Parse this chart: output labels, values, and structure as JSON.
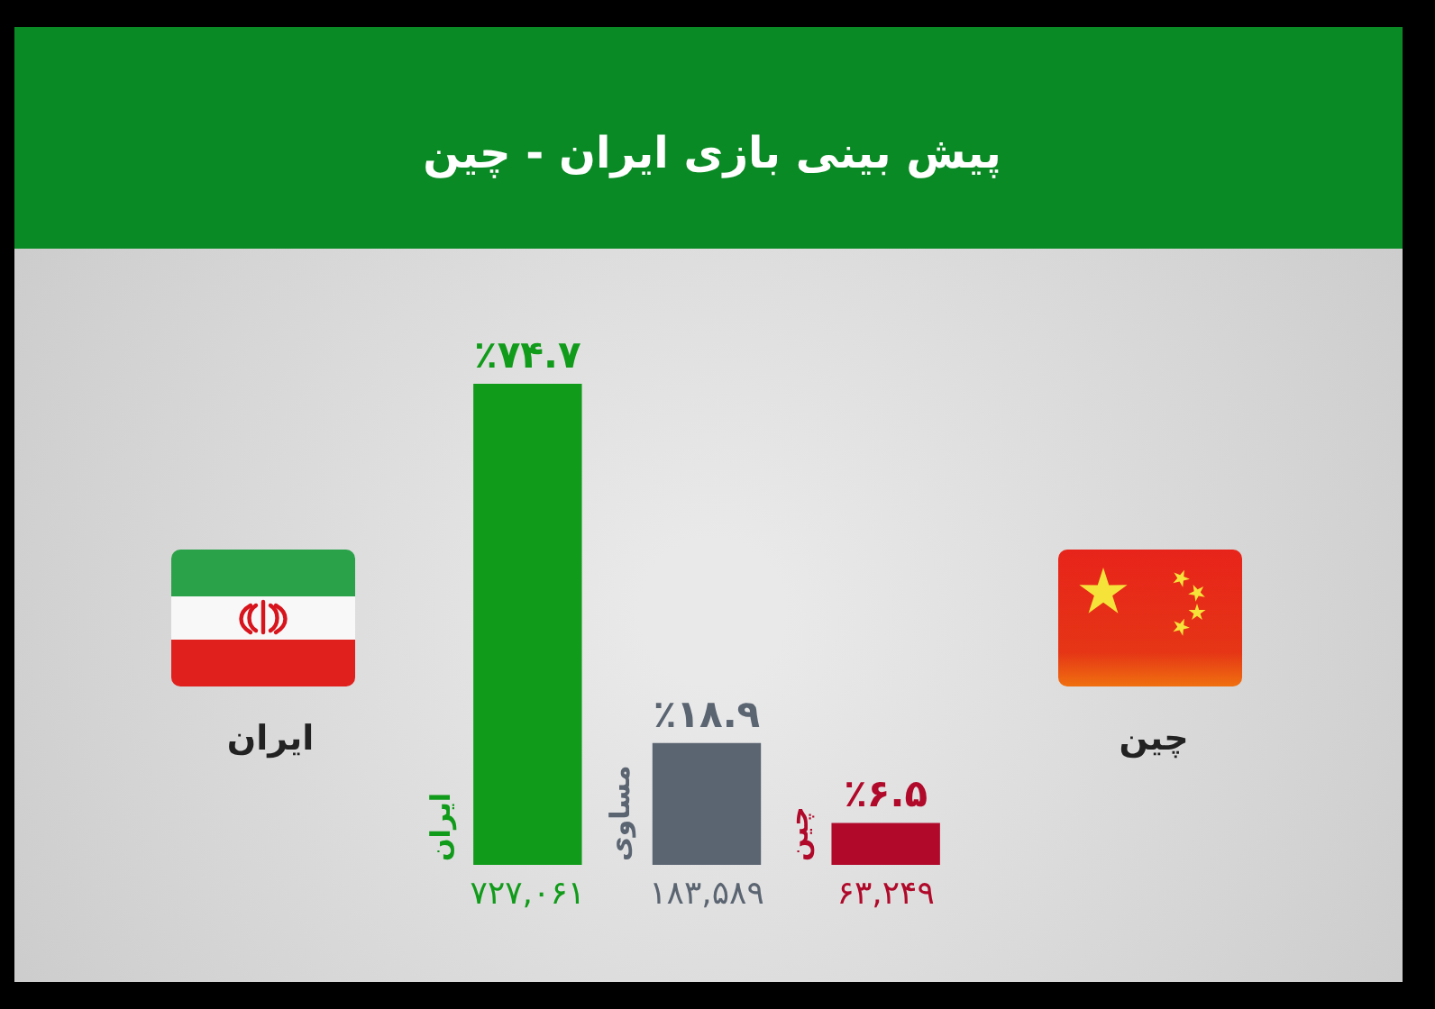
{
  "chart_data": {
    "type": "bar",
    "title": "پیش بینی بازی ایران - چین",
    "categories": [
      "ایران",
      "مساوی",
      "چین"
    ],
    "values": [
      74.7,
      18.9,
      6.5
    ],
    "colors": [
      "#119b1a",
      "#5b6572",
      "#b0092a"
    ],
    "value_labels": [
      "٪۷۴.۷",
      "٪۱۸.۹",
      "٪۶.۵"
    ],
    "tick_labels": "x",
    "annotations": [
      "ایران",
      "چین",
      "۷۲۷,۰۶۱",
      "۱۸۳,۵۸۹",
      "۶۳,۲۴۹"
    ]
  }
}
